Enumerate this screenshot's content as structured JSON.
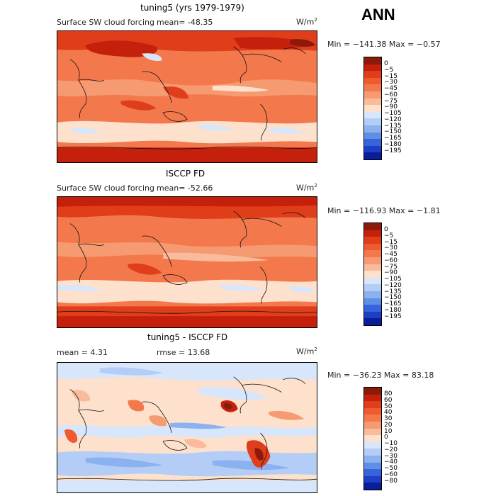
{
  "season": "ANN",
  "panels": [
    {
      "title": "tuning5 (yrs 1979-1979)",
      "variable": "Surface SW cloud forcing",
      "mean": "mean=  -48.35",
      "units_base": "W/m",
      "units_exp": "2",
      "minmax": "Min = −141.38  Max =   −0.57",
      "levels": [
        "0",
        "−5",
        "−15",
        "−30",
        "−45",
        "−60",
        "−75",
        "−90",
        "−105",
        "−120",
        "−135",
        "−150",
        "−165",
        "−180",
        "−195"
      ],
      "colors": [
        "#8b1a0a",
        "#c4200c",
        "#e03d1a",
        "#ef5a2e",
        "#f3794d",
        "#f69a72",
        "#f9bb9b",
        "#fde1cc",
        "#d7e6fb",
        "#b3cdf6",
        "#8bb1f0",
        "#5e8ee6",
        "#3764da",
        "#1d3fc6",
        "#0a1e9a"
      ]
    },
    {
      "title": "ISCCP FD",
      "variable": "Surface SW cloud forcing",
      "mean": "mean=  -52.66",
      "units_base": "W/m",
      "units_exp": "2",
      "minmax": "Min = −116.93  Max =   −1.81",
      "levels": [
        "0",
        "−5",
        "−15",
        "−30",
        "−45",
        "−60",
        "−75",
        "−90",
        "−105",
        "−120",
        "−135",
        "−150",
        "−165",
        "−180",
        "−195"
      ],
      "colors": [
        "#8b1a0a",
        "#c4200c",
        "#e03d1a",
        "#ef5a2e",
        "#f3794d",
        "#f69a72",
        "#f9bb9b",
        "#fde1cc",
        "#d7e6fb",
        "#b3cdf6",
        "#8bb1f0",
        "#5e8ee6",
        "#3764da",
        "#1d3fc6",
        "#0a1e9a"
      ]
    },
    {
      "title": "tuning5 - ISCCP FD",
      "mean": "mean =    4.31",
      "rmse": "rmse =   13.68",
      "units_base": "W/m",
      "units_exp": "2",
      "minmax": "Min = −36.23  Max =  83.18",
      "levels": [
        "80",
        "60",
        "50",
        "40",
        "30",
        "20",
        "10",
        "0",
        "−10",
        "−20",
        "−30",
        "−40",
        "−50",
        "−60",
        "−80"
      ],
      "colors": [
        "#8b1a0a",
        "#c4200c",
        "#e03d1a",
        "#ef5a2e",
        "#f3794d",
        "#f69a72",
        "#f9bb9b",
        "#fde1cc",
        "#d7e6fb",
        "#b3cdf6",
        "#8bb1f0",
        "#5e8ee6",
        "#3764da",
        "#1d3fc6",
        "#0a1e9a"
      ]
    }
  ]
}
